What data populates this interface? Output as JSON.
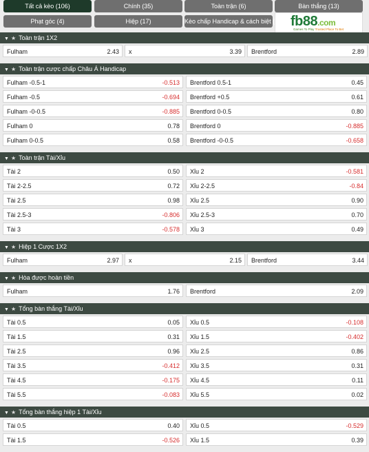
{
  "tabs": [
    {
      "label": "Tất cả kèo (106)",
      "active": true
    },
    {
      "label": "Chính (35)",
      "active": false
    },
    {
      "label": "Toàn trận (6)",
      "active": false
    },
    {
      "label": "Bàn thắng (13)",
      "active": false
    },
    {
      "label": "Phạt góc (4)",
      "active": false
    },
    {
      "label": "Hiệp (17)",
      "active": false
    },
    {
      "label": "Kèo chấp Handicap & cách biệt (5)",
      "active": false
    }
  ],
  "logo": {
    "text": "fb88",
    "domain": ".com",
    "tag_left": "Games To Play",
    "tag_right": "Trusted Place To Bet"
  },
  "sections": [
    {
      "title": "Toàn trận 1X2",
      "type": "3col",
      "rows": [
        [
          {
            "label": "Fulham",
            "odd": "2.43"
          },
          {
            "label": "x",
            "odd": "3.39"
          },
          {
            "label": "Brentford",
            "odd": "2.89"
          }
        ]
      ]
    },
    {
      "title": "Toàn trận cược chấp Châu Á Handicap",
      "type": "2col",
      "rows": [
        [
          {
            "label": "Fulham -0.5-1",
            "odd": "-0.513"
          },
          {
            "label": "Brentford 0.5-1",
            "odd": "0.45"
          }
        ],
        [
          {
            "label": "Fulham -0.5",
            "odd": "-0.694"
          },
          {
            "label": "Brentford +0.5",
            "odd": "0.61"
          }
        ],
        [
          {
            "label": "Fulham -0-0.5",
            "odd": "-0.885"
          },
          {
            "label": "Brentford 0-0.5",
            "odd": "0.80"
          }
        ],
        [
          {
            "label": "Fulham 0",
            "odd": "0.78"
          },
          {
            "label": "Brentford 0",
            "odd": "-0.885"
          }
        ],
        [
          {
            "label": "Fulham 0-0.5",
            "odd": "0.58"
          },
          {
            "label": "Brentford -0-0.5",
            "odd": "-0.658"
          }
        ]
      ]
    },
    {
      "title": "Toàn trận Tài/Xỉu",
      "type": "2col",
      "rows": [
        [
          {
            "label": "Tài 2",
            "odd": "0.50"
          },
          {
            "label": "Xỉu 2",
            "odd": "-0.581"
          }
        ],
        [
          {
            "label": "Tài 2-2.5",
            "odd": "0.72"
          },
          {
            "label": "Xỉu 2-2.5",
            "odd": "-0.84"
          }
        ],
        [
          {
            "label": "Tài 2.5",
            "odd": "0.98"
          },
          {
            "label": "Xỉu 2.5",
            "odd": "0.90"
          }
        ],
        [
          {
            "label": "Tài 2.5-3",
            "odd": "-0.806"
          },
          {
            "label": "Xỉu 2.5-3",
            "odd": "0.70"
          }
        ],
        [
          {
            "label": "Tài 3",
            "odd": "-0.578"
          },
          {
            "label": "Xỉu 3",
            "odd": "0.49"
          }
        ]
      ]
    },
    {
      "title": "Hiệp 1 Cược 1X2",
      "type": "3col",
      "rows": [
        [
          {
            "label": "Fulham",
            "odd": "2.97"
          },
          {
            "label": "x",
            "odd": "2.15"
          },
          {
            "label": "Brentford",
            "odd": "3.44"
          }
        ]
      ]
    },
    {
      "title": "Hòa được hoàn tiền",
      "type": "2col",
      "rows": [
        [
          {
            "label": "Fulham",
            "odd": "1.76"
          },
          {
            "label": "Brentford",
            "odd": "2.09"
          }
        ]
      ]
    },
    {
      "title": "Tổng bàn thắng Tài/Xỉu",
      "type": "2col",
      "rows": [
        [
          {
            "label": "Tài 0.5",
            "odd": "0.05"
          },
          {
            "label": "Xỉu 0.5",
            "odd": "-0.108"
          }
        ],
        [
          {
            "label": "Tài 1.5",
            "odd": "0.31"
          },
          {
            "label": "Xỉu 1.5",
            "odd": "-0.402"
          }
        ],
        [
          {
            "label": "Tài 2.5",
            "odd": "0.96"
          },
          {
            "label": "Xỉu 2.5",
            "odd": "0.86"
          }
        ],
        [
          {
            "label": "Tài 3.5",
            "odd": "-0.412"
          },
          {
            "label": "Xỉu 3.5",
            "odd": "0.31"
          }
        ],
        [
          {
            "label": "Tài 4.5",
            "odd": "-0.175"
          },
          {
            "label": "Xỉu 4.5",
            "odd": "0.11"
          }
        ],
        [
          {
            "label": "Tài 5.5",
            "odd": "-0.083"
          },
          {
            "label": "Xỉu 5.5",
            "odd": "0.02"
          }
        ]
      ]
    },
    {
      "title": "Tổng bàn thắng hiệp 1 Tài/Xỉu",
      "type": "2col",
      "rows": [
        [
          {
            "label": "Tài 0.5",
            "odd": "0.40"
          },
          {
            "label": "Xỉu 0.5",
            "odd": "-0.529"
          }
        ],
        [
          {
            "label": "Tài 1.5",
            "odd": "-0.526"
          },
          {
            "label": "Xỉu 1.5",
            "odd": "0.39"
          }
        ]
      ]
    }
  ],
  "icons": {
    "collapse": "triangle-down-icon",
    "favorite": "star-icon"
  },
  "colors": {
    "header_bg": "#3d4a42",
    "active_tab": "#1e3a2a",
    "tab": "#6f6f6f",
    "negative": "#d62d2d",
    "brand": "#1f7a38"
  }
}
